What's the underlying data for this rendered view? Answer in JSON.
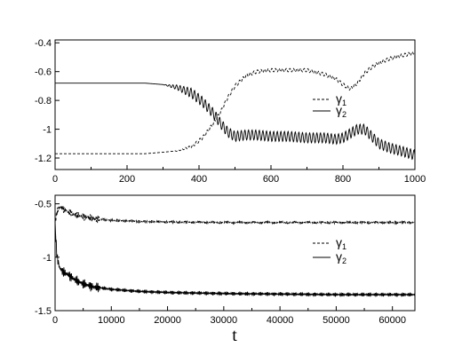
{
  "chart_data": [
    {
      "type": "line",
      "title": "",
      "xlabel": "",
      "ylabel": "",
      "xlim": [
        0,
        1000
      ],
      "ylim": [
        -1.28,
        -0.38
      ],
      "xticks": [
        0,
        200,
        400,
        600,
        800,
        1000
      ],
      "xtick_labels": [
        "0",
        "200",
        "400",
        "600",
        "800",
        "1000"
      ],
      "yticks": [
        -0.4,
        -0.6,
        -0.8,
        -1.0,
        -1.2
      ],
      "ytick_labels": [
        "-0.4",
        "-0.6",
        "-0.8",
        "-1",
        "-1.2"
      ],
      "grid": false,
      "legend_position": "center-right",
      "legend": [
        {
          "main": "γ",
          "sub": "1",
          "style": "dashed"
        },
        {
          "main": "γ",
          "sub": "2",
          "style": "solid"
        }
      ],
      "series": [
        {
          "style": "dashed",
          "x": [
            0,
            100,
            200,
            250,
            300,
            340,
            380,
            410,
            440,
            460,
            480,
            500,
            530,
            560,
            600,
            650,
            700,
            750,
            780,
            800,
            820,
            840,
            860,
            880,
            900,
            930,
            960,
            1000
          ],
          "y": [
            -1.17,
            -1.17,
            -1.17,
            -1.17,
            -1.16,
            -1.15,
            -1.12,
            -1.06,
            -0.96,
            -0.88,
            -0.78,
            -0.7,
            -0.63,
            -0.6,
            -0.59,
            -0.59,
            -0.59,
            -0.62,
            -0.65,
            -0.69,
            -0.72,
            -0.68,
            -0.61,
            -0.57,
            -0.54,
            -0.51,
            -0.49,
            -0.47
          ],
          "oscillation": {
            "start": 320,
            "amplitude": 0.012,
            "period": 10
          }
        },
        {
          "style": "solid",
          "x": [
            0,
            100,
            200,
            250,
            300,
            340,
            380,
            410,
            440,
            460,
            480,
            500,
            530,
            560,
            600,
            650,
            700,
            750,
            780,
            800,
            820,
            840,
            860,
            880,
            900,
            930,
            960,
            1000
          ],
          "y": [
            -0.68,
            -0.68,
            -0.68,
            -0.68,
            -0.69,
            -0.71,
            -0.75,
            -0.81,
            -0.89,
            -0.96,
            -1.02,
            -1.05,
            -1.04,
            -1.04,
            -1.05,
            -1.05,
            -1.06,
            -1.06,
            -1.07,
            -1.06,
            -1.03,
            -1.0,
            -1.0,
            -1.05,
            -1.1,
            -1.13,
            -1.15,
            -1.18
          ],
          "oscillation": {
            "start": 300,
            "amplitude": 0.035,
            "period": 10
          }
        }
      ]
    },
    {
      "type": "line",
      "title": "",
      "xlabel": "t",
      "ylabel": "",
      "xlim": [
        0,
        64000
      ],
      "ylim": [
        -1.5,
        -0.42
      ],
      "xticks": [
        0,
        10000,
        20000,
        30000,
        40000,
        50000,
        60000
      ],
      "xtick_labels": [
        "0",
        "10000",
        "20000",
        "30000",
        "40000",
        "50000",
        "60000"
      ],
      "yticks": [
        -0.5,
        -1.0,
        -1.5
      ],
      "ytick_labels": [
        "-0.5",
        "-1",
        "-1.5"
      ],
      "grid": false,
      "legend_position": "center-right",
      "legend": [
        {
          "main": "γ",
          "sub": "1",
          "style": "dashed"
        },
        {
          "main": "γ",
          "sub": "2",
          "style": "solid"
        }
      ],
      "series": [
        {
          "style": "dashed",
          "x": [
            0,
            300,
            800,
            1500,
            2500,
            3500,
            5000,
            7000,
            10000,
            15000,
            20000,
            30000,
            40000,
            50000,
            64000
          ],
          "y": [
            -0.68,
            -0.58,
            -0.53,
            -0.55,
            -0.58,
            -0.6,
            -0.62,
            -0.64,
            -0.655,
            -0.665,
            -0.67,
            -0.675,
            -0.675,
            -0.675,
            -0.675
          ],
          "oscillation": {
            "start": 0,
            "amplitude": 0.015,
            "decay": 0.4,
            "period": 200
          }
        },
        {
          "style": "solid",
          "x": [
            0,
            300,
            800,
            1500,
            2500,
            3500,
            5000,
            7000,
            10000,
            15000,
            20000,
            30000,
            40000,
            50000,
            64000
          ],
          "y": [
            -0.68,
            -0.98,
            -1.1,
            -1.14,
            -1.17,
            -1.21,
            -1.25,
            -1.28,
            -1.3,
            -1.32,
            -1.33,
            -1.34,
            -1.345,
            -1.35,
            -1.35
          ],
          "oscillation": {
            "start": 0,
            "amplitude": 0.02,
            "decay": 0.5,
            "period": 200
          }
        }
      ]
    }
  ]
}
